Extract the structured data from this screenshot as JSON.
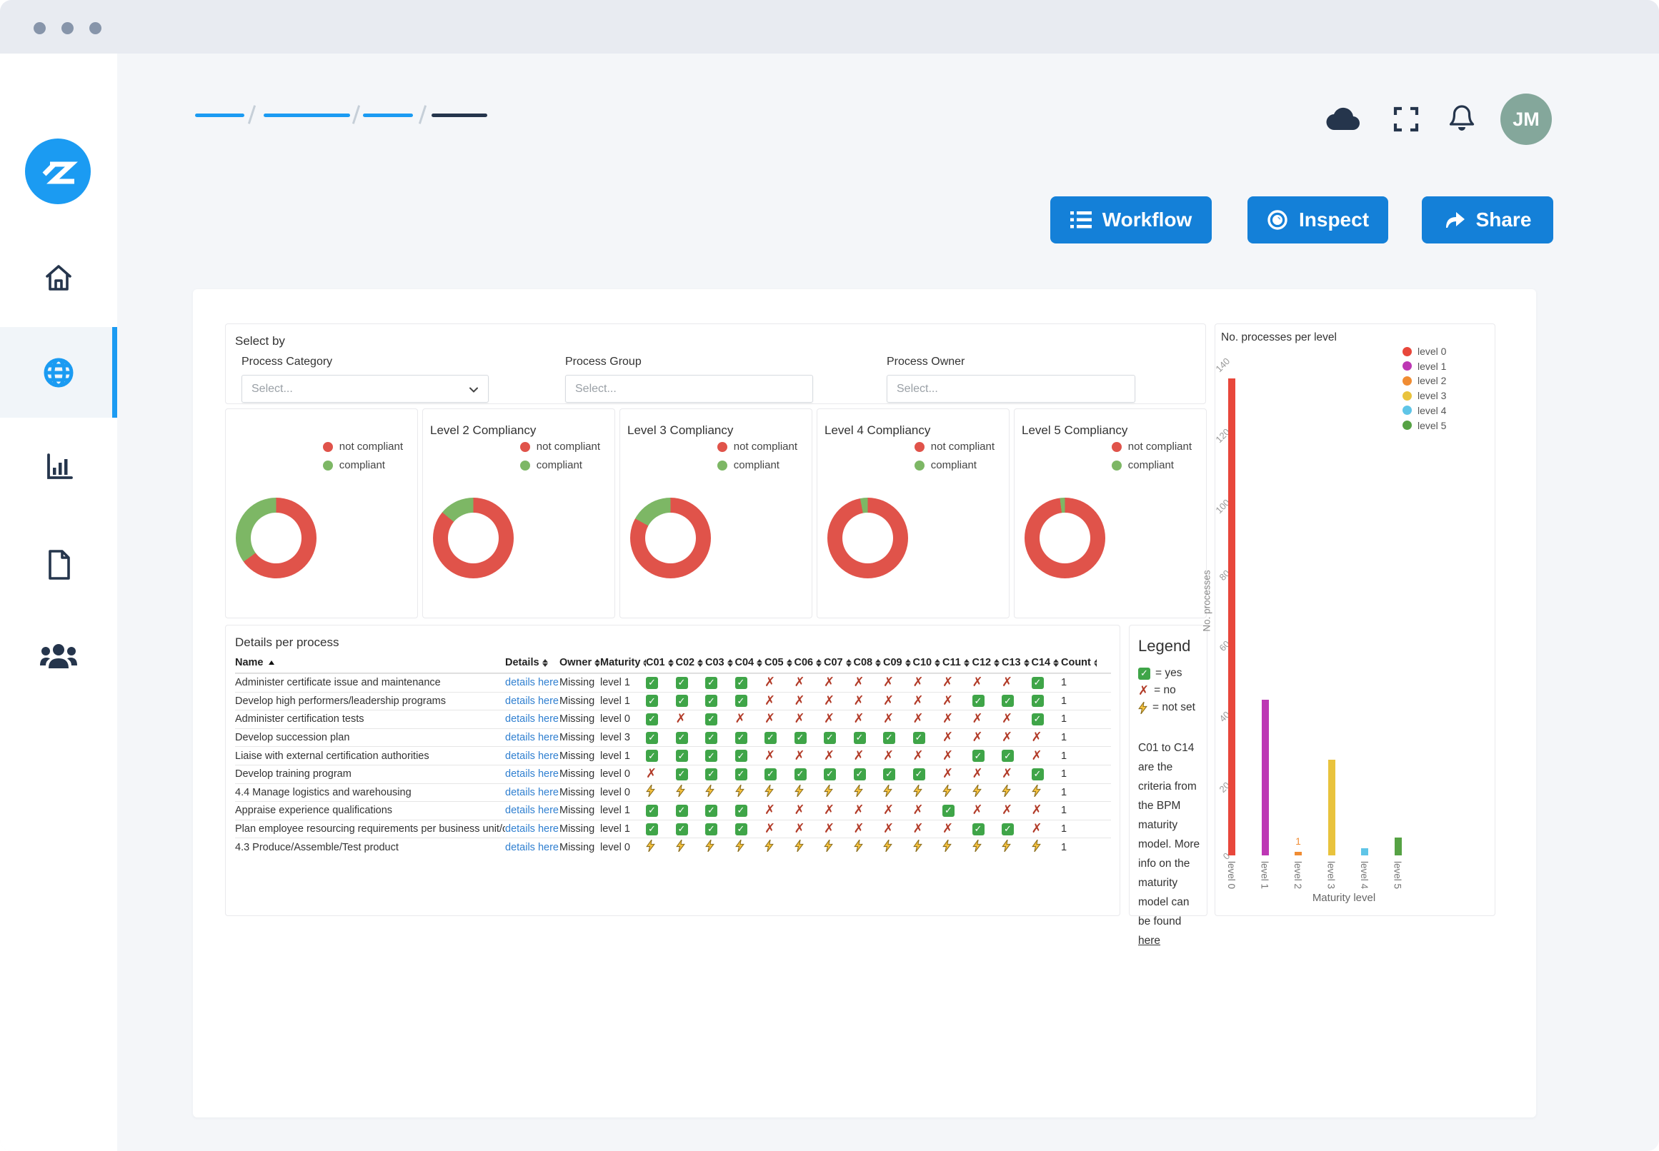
{
  "window": {
    "titlebar_dots": 3
  },
  "sidebar": {
    "logo_text": "Z",
    "items": [
      {
        "id": "home",
        "icon": "home-icon",
        "active": false
      },
      {
        "id": "processes",
        "icon": "globe-icon",
        "active": true
      },
      {
        "id": "analytics",
        "icon": "bar-chart-icon",
        "active": false
      },
      {
        "id": "documents",
        "icon": "document-icon",
        "active": false
      },
      {
        "id": "users",
        "icon": "people-icon",
        "active": false
      }
    ]
  },
  "header": {
    "breadcrumb_segments": 4,
    "icons": [
      "cloud-icon",
      "fullscreen-icon",
      "bell-icon"
    ],
    "avatar_initials": "JM",
    "avatar_color": "#84a79b"
  },
  "toolbar": {
    "buttons": [
      {
        "label": "Workflow",
        "icon": "list-icon"
      },
      {
        "label": "Inspect",
        "icon": "eye-icon"
      },
      {
        "label": "Share",
        "icon": "share-icon"
      }
    ],
    "button_color": "#1480d8"
  },
  "filters": {
    "title": "Select by",
    "fields": [
      {
        "label": "Process Category",
        "placeholder": "Select...",
        "type": "select"
      },
      {
        "label": "Process Group",
        "placeholder": "Select...",
        "type": "input"
      },
      {
        "label": "Process Owner",
        "placeholder": "Select...",
        "type": "input"
      }
    ]
  },
  "chart_data": [
    {
      "type": "bar",
      "title": "No. processes per level",
      "categories": [
        "level 0",
        "level 1",
        "level 2",
        "level 3",
        "level 4",
        "level 5"
      ],
      "values": [
        135,
        44,
        1,
        27,
        2,
        5
      ],
      "colors": [
        "#e8473b",
        "#bd37b4",
        "#f08c33",
        "#e9c33d",
        "#5fc5e7",
        "#56a244"
      ],
      "xlabel": "Maturity level",
      "ylabel": "No. processes",
      "ylim": [
        0,
        140
      ],
      "yticks": [
        0,
        20,
        40,
        60,
        80,
        100,
        120,
        140
      ],
      "grid": false,
      "legend": [
        "level 0",
        "level 1",
        "level 2",
        "level 3",
        "level 4",
        "level 5"
      ],
      "legend_position": "top-right",
      "bar_labels": {
        "level 2": "1"
      }
    },
    {
      "type": "pie",
      "title": "",
      "labels": [
        "not compliant",
        "compliant"
      ],
      "values": [
        65,
        35
      ],
      "colors": [
        "#e0534a",
        "#7db765"
      ]
    },
    {
      "type": "pie",
      "title": "Level 2 Compliancy",
      "labels": [
        "not compliant",
        "compliant"
      ],
      "values": [
        86,
        14
      ],
      "colors": [
        "#e0534a",
        "#7db765"
      ]
    },
    {
      "type": "pie",
      "title": "Level 3 Compliancy",
      "labels": [
        "not compliant",
        "compliant"
      ],
      "values": [
        83,
        17
      ],
      "colors": [
        "#e0534a",
        "#7db765"
      ]
    },
    {
      "type": "pie",
      "title": "Level 4 Compliancy",
      "labels": [
        "not compliant",
        "compliant"
      ],
      "values": [
        97,
        3
      ],
      "colors": [
        "#e0534a",
        "#7db765"
      ]
    },
    {
      "type": "pie",
      "title": "Level 5 Compliancy",
      "labels": [
        "not compliant",
        "compliant"
      ],
      "values": [
        98,
        2
      ],
      "colors": [
        "#e0534a",
        "#7db765"
      ]
    }
  ],
  "process_table": {
    "title": "Details per process",
    "columns": [
      "Name",
      "Details",
      "Owner",
      "Maturity",
      "C01",
      "C02",
      "C03",
      "C04",
      "C05",
      "C06",
      "C07",
      "C08",
      "C09",
      "C10",
      "C11",
      "C12",
      "C13",
      "C14",
      "Count"
    ],
    "rows": [
      {
        "name": "Administer certificate issue and maintenance",
        "details": "details here",
        "owner": "Missing",
        "maturity": "level 1",
        "criteria": [
          "y",
          "y",
          "y",
          "y",
          "n",
          "n",
          "n",
          "n",
          "n",
          "n",
          "n",
          "n",
          "n",
          "y"
        ],
        "count": "1"
      },
      {
        "name": "Develop high performers/leadership programs",
        "details": "details here",
        "owner": "Missing",
        "maturity": "level 1",
        "criteria": [
          "y",
          "y",
          "y",
          "y",
          "n",
          "n",
          "n",
          "n",
          "n",
          "n",
          "n",
          "y",
          "y",
          "y"
        ],
        "count": "1"
      },
      {
        "name": "Administer certification tests",
        "details": "details here",
        "owner": "Missing",
        "maturity": "level 0",
        "criteria": [
          "y",
          "n",
          "y",
          "n",
          "n",
          "n",
          "n",
          "n",
          "n",
          "n",
          "n",
          "n",
          "n",
          "y"
        ],
        "count": "1"
      },
      {
        "name": "Develop succession plan",
        "details": "details here",
        "owner": "Missing",
        "maturity": "level 3",
        "criteria": [
          "y",
          "y",
          "y",
          "y",
          "y",
          "y",
          "y",
          "y",
          "y",
          "y",
          "n",
          "n",
          "n",
          "n"
        ],
        "count": "1"
      },
      {
        "name": "Liaise with external certification authorities",
        "details": "details here",
        "owner": "Missing",
        "maturity": "level 1",
        "criteria": [
          "y",
          "y",
          "y",
          "y",
          "n",
          "n",
          "n",
          "n",
          "n",
          "n",
          "n",
          "y",
          "y",
          "n"
        ],
        "count": "1"
      },
      {
        "name": "Develop training program",
        "details": "details here",
        "owner": "Missing",
        "maturity": "level 0",
        "criteria": [
          "n",
          "y",
          "y",
          "y",
          "y",
          "y",
          "y",
          "y",
          "y",
          "y",
          "n",
          "n",
          "n",
          "y"
        ],
        "count": "1"
      },
      {
        "name": "4.4 Manage logistics and warehousing",
        "details": "details here",
        "owner": "Missing",
        "maturity": "level 0",
        "criteria": [
          "u",
          "u",
          "u",
          "u",
          "u",
          "u",
          "u",
          "u",
          "u",
          "u",
          "u",
          "u",
          "u",
          "u"
        ],
        "count": "1"
      },
      {
        "name": "Appraise experience qualifications",
        "details": "details here",
        "owner": "Missing",
        "maturity": "level 1",
        "criteria": [
          "y",
          "y",
          "y",
          "y",
          "n",
          "n",
          "n",
          "n",
          "n",
          "n",
          "y",
          "n",
          "n",
          "n"
        ],
        "count": "1"
      },
      {
        "name": "Plan employee resourcing requirements per business unit/organization",
        "details": "details here",
        "owner": "Missing",
        "maturity": "level 1",
        "criteria": [
          "y",
          "y",
          "y",
          "y",
          "n",
          "n",
          "n",
          "n",
          "n",
          "n",
          "n",
          "y",
          "y",
          "n"
        ],
        "count": "1"
      },
      {
        "name": "4.3 Produce/Assemble/Test product",
        "details": "details here",
        "owner": "Missing",
        "maturity": "level 0",
        "criteria": [
          "u",
          "u",
          "u",
          "u",
          "u",
          "u",
          "u",
          "u",
          "u",
          "u",
          "u",
          "u",
          "u",
          "u"
        ],
        "count": "1"
      }
    ]
  },
  "legend_panel": {
    "title": "Legend",
    "items": [
      {
        "icon": "check-icon",
        "text": "= yes"
      },
      {
        "icon": "cross-icon",
        "text": "= no"
      },
      {
        "icon": "bolt-icon",
        "text": "= not set"
      }
    ],
    "note": "C01 to C14 are the criteria from the BPM maturity model. More info on the maturity model can be found ",
    "link_text": "here"
  },
  "colors": {
    "accent_blue": "#1b9bf2",
    "button_blue": "#1480d8",
    "navy": "#25354c",
    "donut_red": "#e0534a",
    "donut_green": "#7db765"
  }
}
